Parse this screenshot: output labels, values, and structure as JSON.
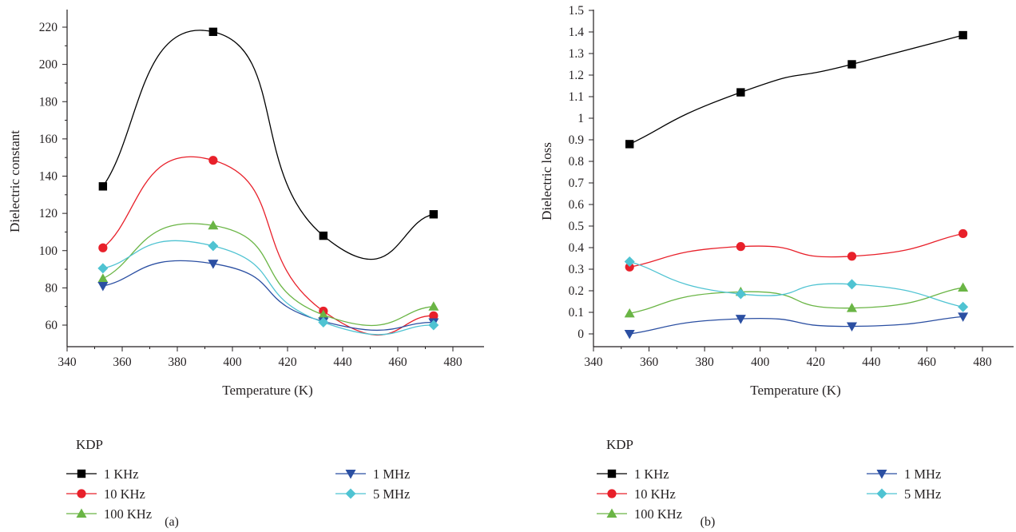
{
  "chart_data": [
    {
      "type": "line",
      "panel_label": "(a)",
      "xlabel": "Temperature (K)",
      "ylabel": "Dielectric constant",
      "xlim": [
        340,
        490
      ],
      "ylim": [
        50,
        230
      ],
      "xticks": [
        340,
        360,
        380,
        400,
        420,
        440,
        460,
        480
      ],
      "yticks": [
        60,
        80,
        100,
        120,
        140,
        160,
        180,
        200,
        220
      ],
      "grid": false,
      "legend_title": "KDP",
      "legend_position": "below",
      "x": [
        353,
        393,
        433,
        473
      ],
      "series": [
        {
          "name": "1 KHz",
          "color": "#000000",
          "marker": "square",
          "values": [
            134.5,
            217.5,
            108,
            119.5
          ]
        },
        {
          "name": "10 KHz",
          "color": "#e8202a",
          "marker": "circle",
          "values": [
            101.5,
            148.5,
            67.5,
            65
          ]
        },
        {
          "name": "100 KHz",
          "color": "#6ab545",
          "marker": "triangle-up",
          "values": [
            85,
            113.5,
            65.5,
            70
          ]
        },
        {
          "name": "1 MHz",
          "color": "#2b4fa2",
          "marker": "triangle-down",
          "values": [
            81,
            93,
            62,
            61.5
          ]
        },
        {
          "name": "5 MHz",
          "color": "#4fc3d2",
          "marker": "diamond",
          "values": [
            90.5,
            102.5,
            61.5,
            60
          ]
        }
      ]
    },
    {
      "type": "line",
      "panel_label": "(b)",
      "xlabel": "Temperature (K)",
      "ylabel": "Dielectric loss",
      "xlim": [
        340,
        490
      ],
      "ylim": [
        -0.05,
        1.5
      ],
      "xticks": [
        340,
        360,
        380,
        400,
        420,
        440,
        460,
        480
      ],
      "yticks": [
        0,
        0.1,
        0.2,
        0.3,
        0.4,
        0.5,
        0.6,
        0.7,
        0.8,
        0.9,
        1,
        1.1,
        1.2,
        1.3,
        1.4,
        1.5
      ],
      "grid": false,
      "legend_title": "KDP",
      "legend_position": "below",
      "x": [
        353,
        393,
        433,
        473
      ],
      "series": [
        {
          "name": "1 KHz",
          "color": "#000000",
          "marker": "square",
          "values": [
            0.88,
            1.12,
            1.25,
            1.385
          ]
        },
        {
          "name": "10 KHz",
          "color": "#e8202a",
          "marker": "circle",
          "values": [
            0.31,
            0.405,
            0.36,
            0.465
          ]
        },
        {
          "name": "100 KHz",
          "color": "#6ab545",
          "marker": "triangle-up",
          "values": [
            0.095,
            0.195,
            0.12,
            0.215
          ]
        },
        {
          "name": "1 MHz",
          "color": "#2b4fa2",
          "marker": "triangle-down",
          "values": [
            0.0,
            0.07,
            0.035,
            0.08
          ]
        },
        {
          "name": "5 MHz",
          "color": "#4fc3d2",
          "marker": "diamond",
          "values": [
            0.335,
            0.185,
            0.23,
            0.125
          ]
        }
      ]
    }
  ]
}
